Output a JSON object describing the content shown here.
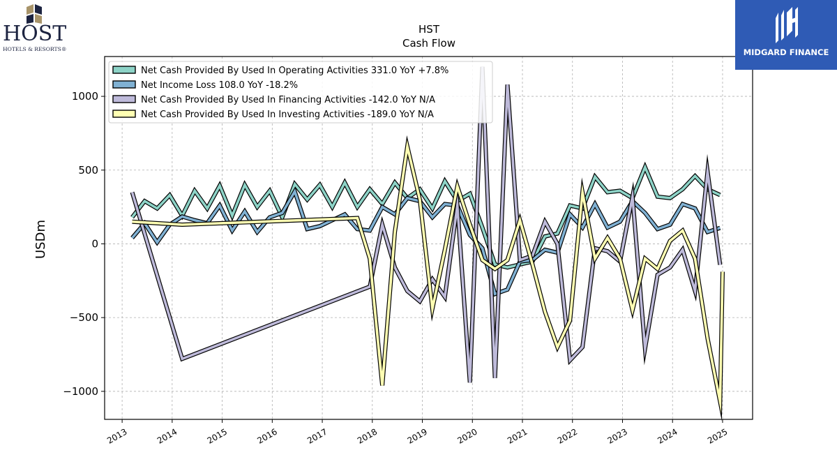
{
  "logos": {
    "host_main": "HOST",
    "host_sub": "HOTELS & RESORTS®",
    "midgard": "MIDGARD FINANCE"
  },
  "colors": {
    "operating": "#8dd3c7",
    "net_income": "#80b1d3",
    "financing": "#bebada",
    "investing": "#ffffb3",
    "midgard_bg": "#2f5bb5",
    "host_navy": "#1c2340",
    "host_gold": "#a8946a"
  },
  "chart_data": {
    "type": "line",
    "title": "HST",
    "subtitle": "Cash Flow",
    "xlabel": "",
    "ylabel": "USDm",
    "xlim": [
      2012.65,
      2025.6
    ],
    "ylim": [
      -1190,
      1270
    ],
    "yticks": [
      -1000,
      -500,
      0,
      500,
      1000
    ],
    "ytick_labels": [
      "−1000",
      "−500",
      "0",
      "500",
      "1000"
    ],
    "xticks": [
      2013,
      2014,
      2015,
      2016,
      2017,
      2018,
      2019,
      2020,
      2021,
      2022,
      2023,
      2024,
      2025
    ],
    "xtick_labels": [
      "2013",
      "2014",
      "2015",
      "2016",
      "2017",
      "2018",
      "2019",
      "2020",
      "2021",
      "2022",
      "2023",
      "2024",
      "2025"
    ],
    "grid": true,
    "legend_position": "top-left",
    "legend": [
      "Net Cash Provided By Used In Operating Activities  331.0 YoY +7.8%",
      "Net Income Loss  108.0 YoY -18.2%",
      "Net Cash Provided By Used In Financing Activities  -142.0 YoY N/A",
      "Net Cash Provided By Used In Investing Activities  -189.0 YoY N/A"
    ],
    "series": [
      {
        "name": "Net Cash Provided By Used In Operating Activities",
        "color": "#8dd3c7",
        "points": [
          [
            2013.2,
            180
          ],
          [
            2013.45,
            290
          ],
          [
            2013.7,
            240
          ],
          [
            2013.95,
            330
          ],
          [
            2014.2,
            190
          ],
          [
            2014.45,
            360
          ],
          [
            2014.7,
            240
          ],
          [
            2014.95,
            395
          ],
          [
            2015.2,
            190
          ],
          [
            2015.45,
            400
          ],
          [
            2015.7,
            250
          ],
          [
            2015.95,
            360
          ],
          [
            2016.2,
            180
          ],
          [
            2016.45,
            405
          ],
          [
            2016.7,
            300
          ],
          [
            2016.95,
            400
          ],
          [
            2017.2,
            250
          ],
          [
            2017.45,
            415
          ],
          [
            2017.7,
            250
          ],
          [
            2017.95,
            370
          ],
          [
            2018.2,
            270
          ],
          [
            2018.45,
            415
          ],
          [
            2018.7,
            310
          ],
          [
            2018.95,
            370
          ],
          [
            2019.2,
            240
          ],
          [
            2019.45,
            425
          ],
          [
            2019.7,
            290
          ],
          [
            2019.95,
            340
          ],
          [
            2020.2,
            110
          ],
          [
            2020.45,
            -140
          ],
          [
            2020.7,
            -160
          ],
          [
            2020.95,
            -140
          ],
          [
            2021.2,
            -120
          ],
          [
            2021.45,
            50
          ],
          [
            2021.7,
            70
          ],
          [
            2021.95,
            260
          ],
          [
            2022.2,
            240
          ],
          [
            2022.45,
            455
          ],
          [
            2022.7,
            350
          ],
          [
            2022.95,
            360
          ],
          [
            2023.2,
            310
          ],
          [
            2023.45,
            520
          ],
          [
            2023.7,
            320
          ],
          [
            2023.95,
            310
          ],
          [
            2024.2,
            370
          ],
          [
            2024.45,
            460
          ],
          [
            2024.7,
            370
          ],
          [
            2024.95,
            331
          ]
        ]
      },
      {
        "name": "Net Income Loss",
        "color": "#80b1d3",
        "points": [
          [
            2013.2,
            40
          ],
          [
            2013.45,
            140
          ],
          [
            2013.7,
            10
          ],
          [
            2013.95,
            130
          ],
          [
            2014.2,
            185
          ],
          [
            2014.45,
            160
          ],
          [
            2014.7,
            140
          ],
          [
            2014.95,
            260
          ],
          [
            2015.2,
            90
          ],
          [
            2015.45,
            220
          ],
          [
            2015.7,
            80
          ],
          [
            2015.95,
            180
          ],
          [
            2016.2,
            210
          ],
          [
            2016.45,
            355
          ],
          [
            2016.7,
            100
          ],
          [
            2016.95,
            120
          ],
          [
            2017.2,
            160
          ],
          [
            2017.45,
            200
          ],
          [
            2017.7,
            100
          ],
          [
            2017.95,
            90
          ],
          [
            2018.2,
            250
          ],
          [
            2018.45,
            200
          ],
          [
            2018.7,
            310
          ],
          [
            2018.95,
            290
          ],
          [
            2019.2,
            180
          ],
          [
            2019.45,
            270
          ],
          [
            2019.7,
            260
          ],
          [
            2019.95,
            60
          ],
          [
            2020.2,
            -30
          ],
          [
            2020.45,
            -340
          ],
          [
            2020.7,
            -310
          ],
          [
            2020.95,
            -120
          ],
          [
            2021.2,
            -110
          ],
          [
            2021.45,
            -40
          ],
          [
            2021.7,
            -60
          ],
          [
            2021.95,
            200
          ],
          [
            2022.2,
            110
          ],
          [
            2022.45,
            270
          ],
          [
            2022.7,
            110
          ],
          [
            2022.95,
            150
          ],
          [
            2023.2,
            290
          ],
          [
            2023.45,
            210
          ],
          [
            2023.7,
            100
          ],
          [
            2023.95,
            130
          ],
          [
            2024.2,
            270
          ],
          [
            2024.45,
            240
          ],
          [
            2024.7,
            80
          ],
          [
            2024.95,
            108
          ]
        ]
      },
      {
        "name": "Net Cash Provided By Used In Financing Activities",
        "color": "#bebada",
        "points": [
          [
            2013.2,
            350
          ],
          [
            2014.2,
            -780
          ],
          [
            2017.95,
            -290
          ],
          [
            2018.2,
            130
          ],
          [
            2018.45,
            -160
          ],
          [
            2018.7,
            -320
          ],
          [
            2018.95,
            -390
          ],
          [
            2019.2,
            -240
          ],
          [
            2019.45,
            -360
          ],
          [
            2019.7,
            260
          ],
          [
            2019.95,
            -940
          ],
          [
            2020.2,
            1200
          ],
          [
            2020.45,
            -910
          ],
          [
            2020.7,
            1080
          ],
          [
            2020.95,
            -110
          ],
          [
            2021.2,
            -80
          ],
          [
            2021.45,
            150
          ],
          [
            2021.7,
            0
          ],
          [
            2021.95,
            -790
          ],
          [
            2022.2,
            -700
          ],
          [
            2022.45,
            -30
          ],
          [
            2022.7,
            -50
          ],
          [
            2022.95,
            -120
          ],
          [
            2023.2,
            320
          ],
          [
            2023.45,
            -710
          ],
          [
            2023.7,
            -210
          ],
          [
            2023.95,
            -160
          ],
          [
            2024.2,
            -40
          ],
          [
            2024.45,
            -320
          ],
          [
            2024.7,
            490
          ],
          [
            2024.95,
            -142
          ]
        ]
      },
      {
        "name": "Net Cash Provided By Used In Investing Activities",
        "color": "#ffffb3",
        "points": [
          [
            2013.2,
            150
          ],
          [
            2014.2,
            130
          ],
          [
            2017.7,
            175
          ],
          [
            2017.95,
            -100
          ],
          [
            2018.2,
            -960
          ],
          [
            2018.45,
            80
          ],
          [
            2018.7,
            660
          ],
          [
            2018.95,
            300
          ],
          [
            2019.2,
            -440
          ],
          [
            2019.45,
            -40
          ],
          [
            2019.7,
            390
          ],
          [
            2019.95,
            130
          ],
          [
            2020.2,
            -110
          ],
          [
            2020.45,
            -170
          ],
          [
            2020.7,
            -110
          ],
          [
            2020.95,
            160
          ],
          [
            2021.2,
            -140
          ],
          [
            2021.45,
            -460
          ],
          [
            2021.7,
            -700
          ],
          [
            2021.95,
            -520
          ],
          [
            2022.2,
            350
          ],
          [
            2022.45,
            -100
          ],
          [
            2022.7,
            40
          ],
          [
            2022.95,
            -100
          ],
          [
            2023.2,
            -450
          ],
          [
            2023.45,
            -100
          ],
          [
            2023.7,
            -170
          ],
          [
            2023.95,
            20
          ],
          [
            2024.2,
            90
          ],
          [
            2024.45,
            -100
          ],
          [
            2024.7,
            -640
          ],
          [
            2024.95,
            -1070
          ],
          [
            2025.0,
            -189
          ]
        ]
      }
    ]
  }
}
